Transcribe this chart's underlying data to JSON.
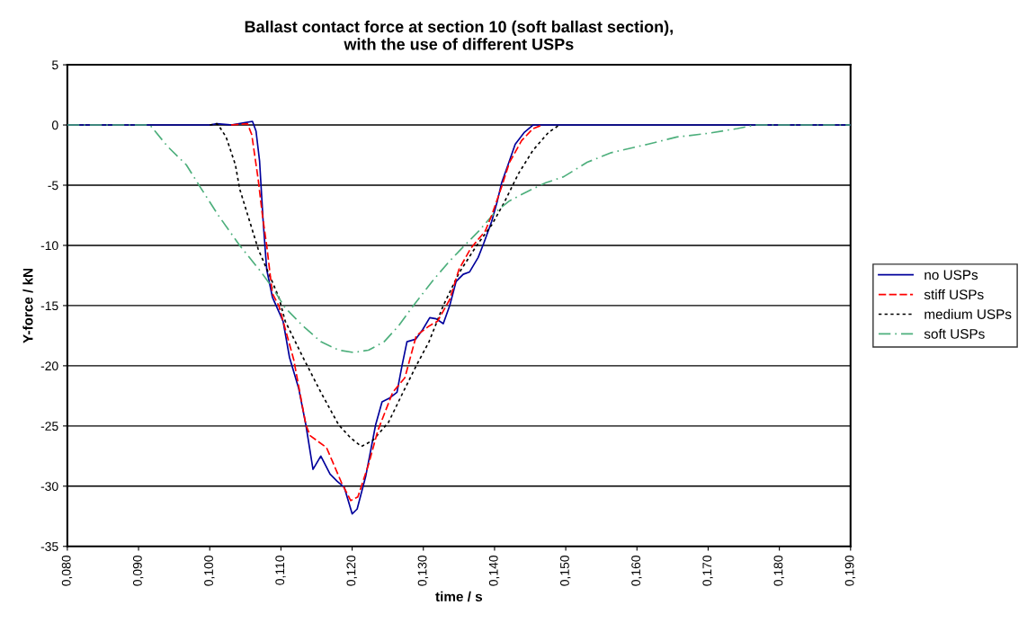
{
  "chart_data": {
    "type": "line",
    "title": "Ballast contact force at section 10 (soft ballast section),\nwith the use of different USPs",
    "xlabel": "time / s",
    "ylabel": "Y-force / kN",
    "xlim": [
      0.08,
      0.19
    ],
    "xticks": [
      {
        "value": 0.08,
        "label": "0,080"
      },
      {
        "value": 0.09,
        "label": "0,090"
      },
      {
        "value": 0.1,
        "label": "0,100"
      },
      {
        "value": 0.11,
        "label": "0,110"
      },
      {
        "value": 0.12,
        "label": "0,120"
      },
      {
        "value": 0.13,
        "label": "0,130"
      },
      {
        "value": 0.14,
        "label": "0,140"
      },
      {
        "value": 0.15,
        "label": "0,150"
      },
      {
        "value": 0.16,
        "label": "0,160"
      },
      {
        "value": 0.17,
        "label": "0,170"
      },
      {
        "value": 0.18,
        "label": "0,180"
      },
      {
        "value": 0.19,
        "label": "0,190"
      }
    ],
    "ylim": [
      -35,
      5
    ],
    "yticks": [
      -35,
      -30,
      -25,
      -20,
      -15,
      -10,
      -5,
      0,
      5
    ],
    "grid": "y",
    "legend": "right",
    "series": [
      {
        "name": "no USPs",
        "color": "#00009c",
        "line_style": "solid",
        "x": [
          0.08,
          0.1,
          0.101,
          0.103,
          0.105,
          0.106,
          0.1065,
          0.107,
          0.1075,
          0.108,
          0.1088,
          0.1097,
          0.1103,
          0.1112,
          0.1125,
          0.1135,
          0.1145,
          0.1156,
          0.1169,
          0.1179,
          0.1189,
          0.12,
          0.1207,
          0.1219,
          0.1233,
          0.1242,
          0.1252,
          0.1263,
          0.127,
          0.1277,
          0.1289,
          0.1299,
          0.1309,
          0.1318,
          0.1328,
          0.1337,
          0.1346,
          0.1356,
          0.1365,
          0.1377,
          0.1385,
          0.1396,
          0.1404,
          0.141,
          0.1419,
          0.1429,
          0.1442,
          0.1454,
          0.19
        ],
        "values": [
          0,
          0,
          0.1,
          0,
          0.2,
          0.3,
          -0.5,
          -3,
          -8,
          -12,
          -14.3,
          -15.5,
          -16.3,
          -19.3,
          -21.9,
          -24.9,
          -28.6,
          -27.5,
          -29.0,
          -29.6,
          -30.1,
          -32.3,
          -31.9,
          -29.2,
          -24.9,
          -23.0,
          -22.7,
          -22.2,
          -20.0,
          -18.0,
          -17.8,
          -17.0,
          -16.0,
          -16.1,
          -16.5,
          -15.0,
          -13.0,
          -12.4,
          -12.2,
          -11.0,
          -9.8,
          -8.0,
          -6.3,
          -4.8,
          -3.3,
          -1.6,
          -0.6,
          0,
          0
        ]
      },
      {
        "name": "stiff USPs",
        "color": "#ff0000",
        "line_style": "dashed",
        "x": [
          0.103,
          0.1053,
          0.1059,
          0.1068,
          0.1074,
          0.108,
          0.1088,
          0.1097,
          0.1118,
          0.1135,
          0.1141,
          0.1164,
          0.1172,
          0.1185,
          0.1198,
          0.1208,
          0.1223,
          0.1236,
          0.1257,
          0.1274,
          0.129,
          0.1308,
          0.132,
          0.1337,
          0.135,
          0.1366,
          0.1387,
          0.1396,
          0.1409,
          0.1421,
          0.1438,
          0.1454,
          0.1467
        ],
        "values": [
          0,
          0.1,
          -0.8,
          -4.5,
          -7.5,
          -10,
          -14,
          -15.0,
          -19.5,
          -24.9,
          -25.8,
          -26.8,
          -27.9,
          -29.7,
          -31.2,
          -30.9,
          -28.2,
          -25.4,
          -22.2,
          -21.0,
          -17.5,
          -16.7,
          -16.3,
          -14.5,
          -12.0,
          -10.3,
          -8.8,
          -7.5,
          -5.3,
          -3.1,
          -1.3,
          -0.3,
          0
        ]
      },
      {
        "name": "medium USPs",
        "color": "#000000",
        "line_style": "dotted",
        "x": [
          0.1,
          0.101,
          0.1012,
          0.1023,
          0.1036,
          0.1042,
          0.1055,
          0.1068,
          0.1084,
          0.1097,
          0.1106,
          0.1131,
          0.1156,
          0.1181,
          0.1198,
          0.1213,
          0.1229,
          0.1251,
          0.1274,
          0.129,
          0.1308,
          0.1328,
          0.135,
          0.1375,
          0.1396,
          0.1413,
          0.1434,
          0.1454,
          0.1476,
          0.1491
        ],
        "values": [
          0,
          0.1,
          0,
          -1.0,
          -3.3,
          -5.3,
          -7.8,
          -10.3,
          -12.5,
          -14.3,
          -16.3,
          -19.3,
          -22.2,
          -24.9,
          -26.0,
          -26.7,
          -26.2,
          -24.7,
          -21.9,
          -20.0,
          -18.0,
          -15.0,
          -12.3,
          -10.0,
          -8.3,
          -6.5,
          -4.0,
          -2.1,
          -0.6,
          0
        ]
      },
      {
        "name": "soft USPs",
        "color": "#4daf7c",
        "line_style": "dash-dot",
        "x": [
          0.08,
          0.0911,
          0.0916,
          0.0941,
          0.0967,
          0.0986,
          0.1012,
          0.1042,
          0.1072,
          0.1088,
          0.1106,
          0.1131,
          0.1156,
          0.1181,
          0.1202,
          0.1223,
          0.1245,
          0.1265,
          0.1286,
          0.1315,
          0.1337,
          0.1358,
          0.1378,
          0.14,
          0.1421,
          0.1447,
          0.1472,
          0.1497,
          0.153,
          0.1564,
          0.1615,
          0.1656,
          0.1699,
          0.1741,
          0.1766,
          0.19
        ],
        "values": [
          0,
          0,
          0,
          -1.8,
          -3.3,
          -5.1,
          -7.5,
          -10,
          -12.2,
          -13.5,
          -15.2,
          -16.7,
          -18.0,
          -18.7,
          -18.9,
          -18.7,
          -18.0,
          -16.7,
          -15.0,
          -12.8,
          -11.3,
          -10.0,
          -8.8,
          -7.3,
          -6.3,
          -5.5,
          -4.8,
          -4.3,
          -3.1,
          -2.3,
          -1.6,
          -1.0,
          -0.7,
          -0.3,
          0,
          0
        ]
      }
    ]
  }
}
